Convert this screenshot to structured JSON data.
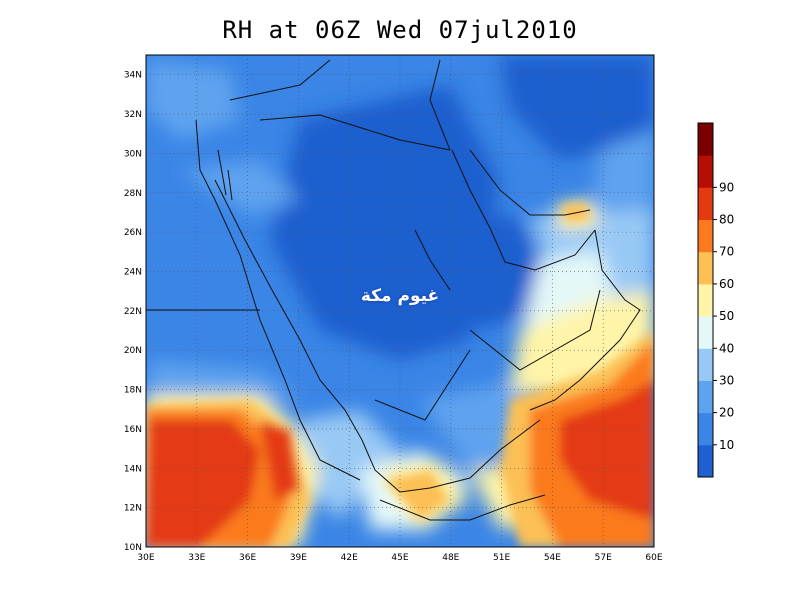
{
  "title": "RH at 06Z Wed 07jul2010",
  "watermark_text": "غيوم مكة",
  "map": {
    "lon_range": [
      30,
      60
    ],
    "lat_range": [
      10,
      35
    ],
    "lon_labels": [
      "30E",
      "33E",
      "36E",
      "39E",
      "42E",
      "45E",
      "48E",
      "51E",
      "54E",
      "57E",
      "60E"
    ],
    "lat_labels": [
      "10N",
      "12N",
      "14N",
      "16N",
      "18N",
      "20N",
      "22N",
      "24N",
      "26N",
      "28N",
      "30N",
      "32N",
      "34N"
    ],
    "grid": "dotted"
  },
  "colorbar": {
    "labels": [
      "10",
      "20",
      "30",
      "40",
      "50",
      "60",
      "70",
      "80",
      "90"
    ],
    "colors": [
      "#1f5fcf",
      "#3a85e6",
      "#5ea3ef",
      "#98c9f5",
      "#e4f8f8",
      "#fff4a8",
      "#fcc055",
      "#fb7a1f",
      "#e43a12",
      "#b50f05",
      "#7a0000"
    ]
  }
}
